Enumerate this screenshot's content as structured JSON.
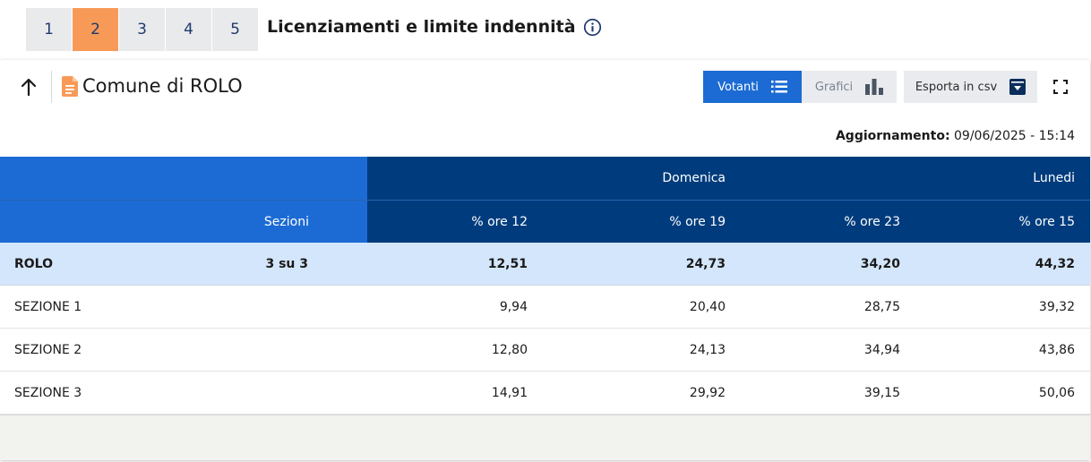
{
  "tabs": [
    "1",
    "2",
    "3",
    "4",
    "5"
  ],
  "active_tab": "2",
  "quesito_title": "Licenziamenti e limite indennità",
  "card": {
    "title": "Comune di ROLO",
    "buttons": {
      "votanti": "Votanti",
      "grafici": "Grafici",
      "csv": "Esporta in csv"
    },
    "update_label": "Aggiornamento:",
    "update_value": "09/06/2025 - 15:14"
  },
  "table": {
    "group_headers": {
      "domenica": "Domenica",
      "lunedi": "Lunedi"
    },
    "col_headers": {
      "sezioni": "Sezioni",
      "ore12": "% ore 12",
      "ore19": "% ore 19",
      "ore23": "% ore 23",
      "ore15": "% ore 15"
    },
    "total": {
      "name": "ROLO",
      "sezioni": "3 su 3",
      "ore12": "12,51",
      "ore19": "24,73",
      "ore23": "34,20",
      "ore15": "44,32"
    },
    "rows": [
      {
        "name": "SEZIONE 1",
        "ore12": "9,94",
        "ore19": "20,40",
        "ore23": "28,75",
        "ore15": "39,32"
      },
      {
        "name": "SEZIONE 2",
        "ore12": "12,80",
        "ore19": "24,13",
        "ore23": "34,94",
        "ore15": "43,86"
      },
      {
        "name": "SEZIONE 3",
        "ore12": "14,91",
        "ore19": "29,92",
        "ore23": "39,15",
        "ore15": "50,06"
      }
    ]
  },
  "colors": {
    "active_tab": "#f79a58",
    "primary_blue": "#1c6bd4",
    "dark_blue": "#003c7d",
    "total_row": "#d4e6fb"
  }
}
